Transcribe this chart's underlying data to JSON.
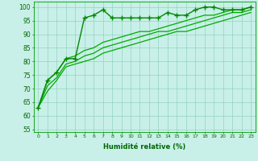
{
  "xlabel": "Humidité relative (%)",
  "ylabel_ticks": [
    55,
    60,
    65,
    70,
    75,
    80,
    85,
    90,
    95,
    100
  ],
  "xticks": [
    0,
    1,
    2,
    3,
    4,
    5,
    6,
    7,
    8,
    9,
    10,
    11,
    12,
    13,
    14,
    15,
    16,
    17,
    18,
    19,
    20,
    21,
    22,
    23
  ],
  "ylim": [
    54,
    102
  ],
  "xlim": [
    -0.5,
    23.5
  ],
  "bg_color": "#c8f0e8",
  "grid_color": "#88ccbb",
  "line_color": "#008800",
  "line_color2": "#00aa00",
  "marker_line": {
    "x": [
      0,
      1,
      2,
      3,
      4,
      5,
      6,
      7,
      8,
      9,
      10,
      11,
      12,
      13,
      14,
      15,
      16,
      17,
      18,
      19,
      20,
      21,
      22,
      23
    ],
    "y": [
      63,
      73,
      76,
      81,
      81,
      96,
      97,
      99,
      96,
      96,
      96,
      96,
      96,
      96,
      98,
      97,
      97,
      99,
      100,
      100,
      99,
      99,
      99,
      100
    ]
  },
  "curve1": {
    "x": [
      0,
      1,
      2,
      3,
      4,
      5,
      6,
      7,
      8,
      9,
      10,
      11,
      12,
      13,
      14,
      15,
      16,
      17,
      18,
      19,
      20,
      21,
      22,
      23
    ],
    "y": [
      63,
      73,
      76,
      81,
      82,
      84,
      85,
      87,
      88,
      89,
      90,
      91,
      91,
      92,
      93,
      94,
      95,
      96,
      97,
      97,
      98,
      99,
      99,
      100
    ]
  },
  "curve2": {
    "x": [
      0,
      1,
      2,
      3,
      4,
      5,
      6,
      7,
      8,
      9,
      10,
      11,
      12,
      13,
      14,
      15,
      16,
      17,
      18,
      19,
      20,
      21,
      22,
      23
    ],
    "y": [
      63,
      71,
      74,
      79,
      80,
      82,
      83,
      85,
      86,
      87,
      88,
      89,
      90,
      91,
      91,
      92,
      93,
      94,
      95,
      96,
      97,
      98,
      98,
      99
    ]
  },
  "curve3": {
    "x": [
      0,
      1,
      2,
      3,
      4,
      5,
      6,
      7,
      8,
      9,
      10,
      11,
      12,
      13,
      14,
      15,
      16,
      17,
      18,
      19,
      20,
      21,
      22,
      23
    ],
    "y": [
      63,
      69,
      73,
      78,
      79,
      80,
      81,
      83,
      84,
      85,
      86,
      87,
      88,
      89,
      90,
      91,
      91,
      92,
      93,
      94,
      95,
      96,
      97,
      98
    ]
  }
}
